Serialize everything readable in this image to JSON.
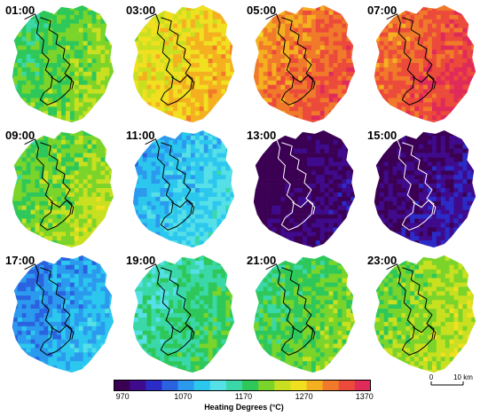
{
  "panels": [
    {
      "time": "01:00",
      "level": 0.58,
      "boundary_color": "#000000"
    },
    {
      "time": "03:00",
      "level": 0.74,
      "boundary_color": "#000000"
    },
    {
      "time": "05:00",
      "level": 0.86,
      "boundary_color": "#000000"
    },
    {
      "time": "07:00",
      "level": 0.9,
      "boundary_color": "#000000"
    },
    {
      "time": "09:00",
      "level": 0.6,
      "boundary_color": "#000000"
    },
    {
      "time": "11:00",
      "level": 0.36,
      "boundary_color": "#000000"
    },
    {
      "time": "13:00",
      "level": 0.04,
      "boundary_color": "#ffffff"
    },
    {
      "time": "15:00",
      "level": 0.08,
      "boundary_color": "#ffffff"
    },
    {
      "time": "17:00",
      "level": 0.3,
      "boundary_color": "#000000"
    },
    {
      "time": "19:00",
      "level": 0.5,
      "boundary_color": "#000000"
    },
    {
      "time": "21:00",
      "level": 0.56,
      "boundary_color": "#000000"
    },
    {
      "time": "23:00",
      "level": 0.62,
      "boundary_color": "#000000"
    }
  ],
  "legend": {
    "title": "Heating Degrees (°C)",
    "ticks": [
      "970",
      "1070",
      "1170",
      "1270",
      "1370"
    ],
    "colors": [
      "#3b0053",
      "#3f0a8c",
      "#2b2bc8",
      "#2a62e0",
      "#2b9aee",
      "#2bc7ee",
      "#55e0e8",
      "#3ad8a8",
      "#2ec85a",
      "#7ad42a",
      "#c8e020",
      "#f0e020",
      "#f5b020",
      "#f07a2a",
      "#ec4a3a",
      "#e02a5a"
    ]
  },
  "scale": {
    "zero": "0",
    "distance": "10 km"
  }
}
